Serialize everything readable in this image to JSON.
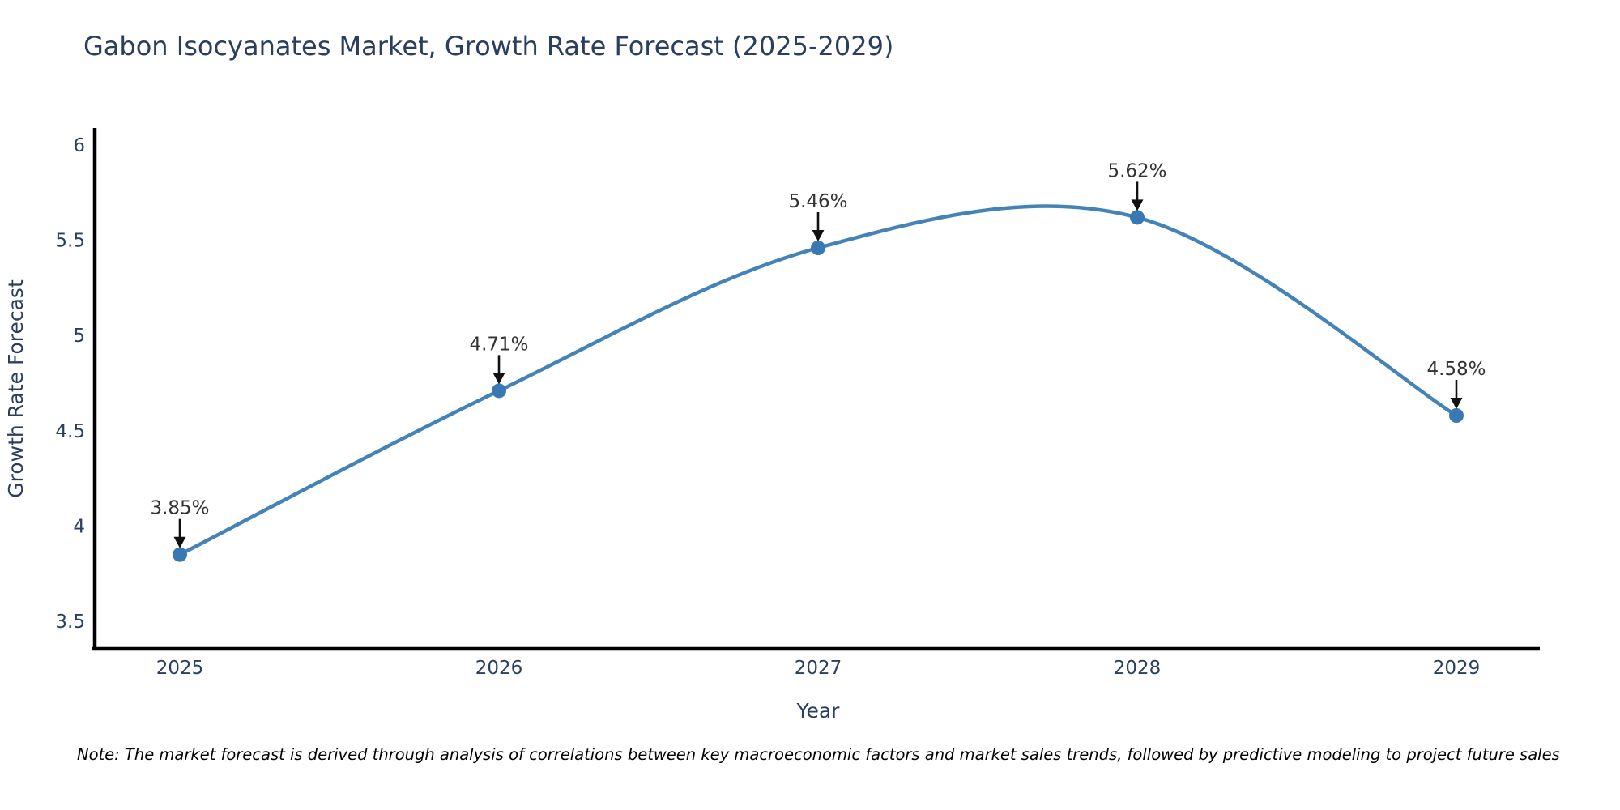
{
  "chart_data": {
    "type": "line",
    "line_shape": "spline",
    "title": "Gabon Isocyanates Market, Growth Rate Forecast (2025-2029)",
    "xlabel": "Year",
    "ylabel": "Growth Rate Forecast",
    "categories": [
      "2025",
      "2026",
      "2027",
      "2028",
      "2029"
    ],
    "values": [
      3.85,
      4.71,
      5.46,
      5.62,
      4.58
    ],
    "point_labels": [
      "3.85%",
      "4.71%",
      "5.46%",
      "5.62%",
      "4.58%"
    ],
    "ytick_values": [
      3.5,
      4,
      4.5,
      5,
      5.5,
      6
    ],
    "ytick_labels": [
      "3.5",
      "4",
      "4.5",
      "5",
      "5.5",
      "6"
    ],
    "ylim": [
      3.36,
      6.1
    ],
    "grid": false,
    "legend": "none",
    "line_color": "#4483b8",
    "marker_color": "#3878b4",
    "axis_color": "#000000",
    "arrow_color": "#111111",
    "title_color": "#2a3f5f",
    "tick_color": "#2a3f5f",
    "annotation_text_color": "#333333"
  },
  "note": {
    "text": "Note: The market forecast is derived through analysis of correlations between key macroeconomic factors and market sales trends, followed by predictive modeling to project future sales"
  }
}
